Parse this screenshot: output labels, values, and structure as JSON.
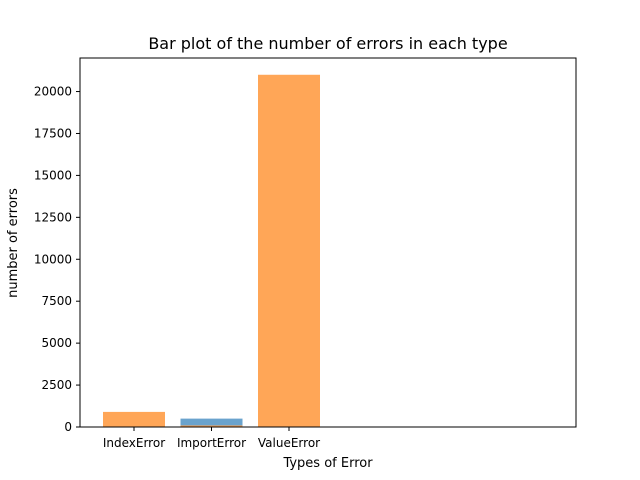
{
  "chart_data": {
    "type": "bar",
    "title": "Bar plot of the number of errors in each type",
    "xlabel": "Types of Error",
    "ylabel": "number of errors",
    "categories": [
      "IndexError",
      "ImportError",
      "ValueError"
    ],
    "series": [
      {
        "values": [
          900,
          0,
          21000
        ],
        "color": "#ffa657"
      },
      {
        "values": [
          0,
          500,
          0
        ],
        "color": "#6aa3cd"
      }
    ],
    "overlay_values": [
      0,
      90,
      0
    ],
    "overlay_color": "#ffa657",
    "ylim": [
      0,
      22000
    ],
    "yticks": [
      0,
      2500,
      5000,
      7500,
      10000,
      12500,
      15000,
      17500,
      20000
    ],
    "grid": false,
    "legend": "none"
  }
}
